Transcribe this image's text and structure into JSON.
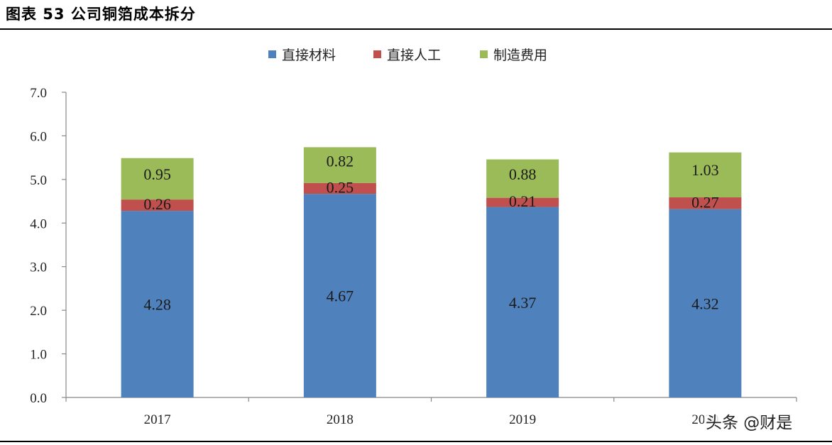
{
  "figure": {
    "title": "图表 53 公司铜箔成本拆分",
    "watermark": "头条 @财是"
  },
  "chart_data": {
    "type": "bar",
    "stacked": true,
    "categories": [
      "2017",
      "2018",
      "2019",
      "2020"
    ],
    "series": [
      {
        "name": "直接材料",
        "color": "#4F81BD",
        "values": [
          4.28,
          4.67,
          4.37,
          4.32
        ],
        "labels": [
          "4.28",
          "4.67",
          "4.37",
          "4.32"
        ]
      },
      {
        "name": "直接人工",
        "color": "#C0504D",
        "values": [
          0.26,
          0.25,
          0.21,
          0.27
        ],
        "labels": [
          "0.26",
          "0.25",
          "0.21",
          "0.27"
        ]
      },
      {
        "name": "制造费用",
        "color": "#9BBB59",
        "values": [
          0.95,
          0.82,
          0.88,
          1.03
        ],
        "labels": [
          "0.95",
          "0.82",
          "0.88",
          "1.03"
        ]
      }
    ],
    "ylim": [
      0,
      7
    ],
    "yticks": [
      "0.0",
      "1.0",
      "2.0",
      "3.0",
      "4.0",
      "5.0",
      "6.0",
      "7.0"
    ],
    "grid": false,
    "legend": "top-center",
    "title": "",
    "xlabel": "",
    "ylabel": ""
  }
}
